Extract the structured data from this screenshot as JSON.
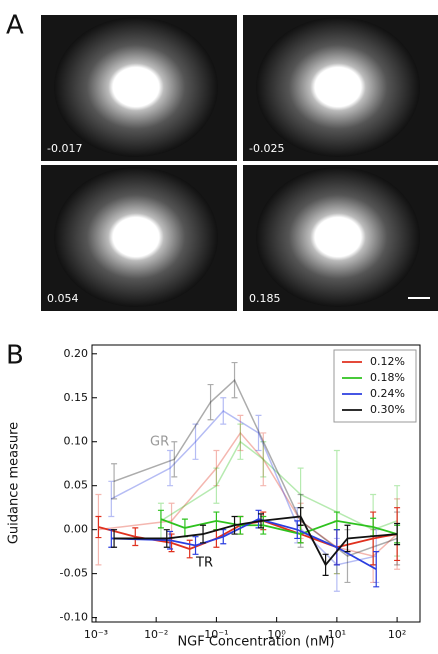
{
  "panel_labels": [
    "A",
    "B"
  ],
  "images": [
    {
      "label": "-0.017"
    },
    {
      "label": "-0.025"
    },
    {
      "label": "0.054"
    },
    {
      "label": "0.185"
    }
  ],
  "chart_data": {
    "type": "line",
    "xlabel": "NGF Concentration (nM)",
    "ylabel": "Guidance measure",
    "log_x": true,
    "xlim": [
      0.00086,
      240
    ],
    "ylim": [
      -0.105,
      0.21
    ],
    "xticks": [
      {
        "value": 0.001,
        "label": "10⁻³"
      },
      {
        "value": 0.01,
        "label": "10⁻²"
      },
      {
        "value": 0.1,
        "label": "10⁻¹"
      },
      {
        "value": 1,
        "label": "10⁰"
      },
      {
        "value": 10,
        "label": "10¹"
      },
      {
        "value": 100,
        "label": "10²"
      }
    ],
    "yticks": [
      {
        "value": -0.1,
        "label": "-0.10"
      },
      -0.05,
      {
        "value": 0,
        "label": "0.00"
      },
      0.05,
      {
        "value": 0.1,
        "label": "0.10"
      },
      0.15,
      {
        "value": 0.2,
        "label": "0.20"
      }
    ],
    "annotations": [
      "GR",
      "TR"
    ],
    "series": [
      {
        "name": "0.12%",
        "color": "#e0301e",
        "tr": {
          "x": [
            0.0011,
            0.0045,
            0.018,
            0.036,
            0.1,
            0.25,
            0.6,
            2.5,
            10,
            40,
            100
          ],
          "values": [
            0.003,
            -0.008,
            -0.015,
            -0.022,
            -0.01,
            0.005,
            0.01,
            -0.005,
            -0.02,
            -0.01,
            -0.005
          ],
          "errors": [
            0.012,
            0.01,
            0.01,
            0.01,
            0.01,
            0.01,
            0.01,
            0.01,
            0.02,
            0.03,
            0.03
          ]
        },
        "gr": {
          "x": [
            0.0011,
            0.018,
            0.1,
            0.25,
            0.6,
            2.5,
            10,
            40,
            100
          ],
          "values": [
            0,
            0.01,
            0.07,
            0.11,
            0.08,
            0.01,
            -0.02,
            -0.03,
            -0.005
          ],
          "errors": [
            0.04,
            0.02,
            0.02,
            0.02,
            0.03,
            0.02,
            0.03,
            0.03,
            0.04
          ]
        }
      },
      {
        "name": "0.18%",
        "color": "#2ec21e",
        "tr": {
          "x": [
            0.012,
            0.03,
            0.1,
            0.25,
            0.6,
            2.5,
            10,
            40,
            100
          ],
          "values": [
            0.012,
            0.002,
            0.01,
            0.005,
            0.005,
            -0.005,
            0.01,
            0.003,
            -0.005
          ],
          "errors": [
            0.01,
            0.01,
            0.01,
            0.01,
            0.01,
            0.01,
            0.01,
            0.01,
            0.01
          ]
        },
        "gr": {
          "x": [
            0.012,
            0.1,
            0.25,
            0.6,
            2.5,
            10,
            40,
            100
          ],
          "values": [
            0.01,
            0.05,
            0.1,
            0.08,
            0.04,
            0.02,
            0.0,
            0.01
          ],
          "errors": [
            0.02,
            0.02,
            0.02,
            0.02,
            0.03,
            0.07,
            0.04,
            0.04
          ]
        }
      },
      {
        "name": "0.24%",
        "color": "#2b3ee0",
        "tr": {
          "x": [
            0.0018,
            0.017,
            0.045,
            0.13,
            0.5,
            2.2,
            10,
            45
          ],
          "values": [
            -0.01,
            -0.012,
            -0.018,
            -0.008,
            0.012,
            0,
            -0.02,
            -0.045
          ],
          "errors": [
            0.01,
            0.01,
            0.01,
            0.008,
            0.01,
            0.01,
            0.02,
            0.02
          ]
        },
        "gr": {
          "x": [
            0.0018,
            0.017,
            0.045,
            0.13,
            0.5,
            2.2,
            10,
            45
          ],
          "values": [
            0.035,
            0.07,
            0.1,
            0.135,
            0.11,
            0.005,
            -0.04,
            -0.03
          ],
          "errors": [
            0.02,
            0.02,
            0.02,
            0.015,
            0.02,
            0.02,
            0.03,
            0.03
          ]
        }
      },
      {
        "name": "0.30%",
        "color": "#111111",
        "tr": {
          "x": [
            0.002,
            0.015,
            0.06,
            0.2,
            0.55,
            2.5,
            6.5,
            15,
            100
          ],
          "values": [
            -0.01,
            -0.01,
            -0.005,
            0.005,
            0.01,
            0.015,
            -0.04,
            -0.01,
            -0.005
          ],
          "errors": [
            0.01,
            0.01,
            0.01,
            0.01,
            0.008,
            0.01,
            0.012,
            0.015,
            0.012
          ]
        },
        "gr": {
          "x": [
            0.002,
            0.02,
            0.08,
            0.2,
            2.5,
            15,
            100
          ],
          "values": [
            0.055,
            0.08,
            0.145,
            0.17,
            0.01,
            -0.03,
            -0.01
          ],
          "errors": [
            0.02,
            0.02,
            0.02,
            0.02,
            0.03,
            0.03,
            0.03
          ]
        }
      }
    ]
  }
}
